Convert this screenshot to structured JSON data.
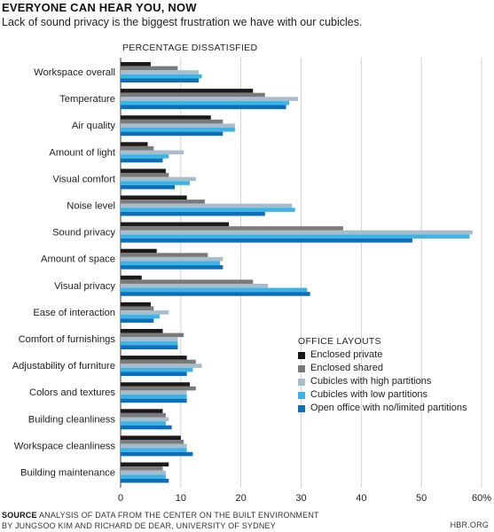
{
  "header": {
    "title": "EVERYONE CAN HEAR YOU, NOW",
    "subtitle": "Lack of sound privacy is the biggest frustration we have with our cubicles."
  },
  "footer": {
    "source_label": "SOURCE",
    "source_line1": "ANALYSIS OF DATA FROM THE CENTER ON THE BUILT ENVIRONMENT",
    "source_line2": "BY JUNGSOO KIM AND RICHARD DE DEAR, UNIVERSITY OF SYDNEY",
    "credit": "HBR.ORG"
  },
  "chart_data": {
    "type": "bar",
    "orientation": "horizontal",
    "title": "EVERYONE CAN HEAR YOU, NOW",
    "subtitle": "Lack of sound privacy is the biggest frustration we have with our cubicles.",
    "axis_title": "PERCENTAGE DISSATISFIED",
    "xlim": [
      0,
      60
    ],
    "ticks": [
      0,
      10,
      20,
      30,
      40,
      50,
      60
    ],
    "tick_labels": [
      "0",
      "10",
      "20",
      "30",
      "40",
      "50",
      "60%"
    ],
    "grid": true,
    "legend_title": "OFFICE LAYOUTS",
    "legend_position": "bottom-right",
    "categories": [
      "Workspace overall",
      "Temperature",
      "Air quality",
      "Amount of light",
      "Visual comfort",
      "Noise level",
      "Sound privacy",
      "Amount of space",
      "Visual privacy",
      "Ease of interaction",
      "Comfort of furnishings",
      "Adjustability of furniture",
      "Colors and textures",
      "Building cleanliness",
      "Workspace cleanliness",
      "Building maintenance"
    ],
    "series": [
      {
        "name": "Enclosed private",
        "color": "#1a1a1a",
        "values": [
          5,
          22,
          15,
          4.5,
          7.5,
          11,
          18,
          6,
          3.5,
          5,
          7,
          11,
          11.5,
          7,
          10,
          8
        ]
      },
      {
        "name": "Enclosed shared",
        "color": "#7a7a7a",
        "values": [
          9.5,
          24,
          17,
          5.5,
          8,
          14,
          37,
          14.5,
          22,
          5.5,
          10.5,
          12.5,
          12.5,
          7.5,
          10.5,
          7
        ]
      },
      {
        "name": "Cubicles with high partitions",
        "color": "#a9bccb",
        "values": [
          13,
          29.5,
          19,
          10.5,
          12.5,
          28.5,
          58.5,
          17,
          24.5,
          8,
          9.5,
          13.5,
          11,
          8,
          11,
          7.5
        ]
      },
      {
        "name": "Cubicles with low partitions",
        "color": "#3cb4e6",
        "values": [
          13.5,
          28,
          19,
          8,
          11.5,
          29,
          58,
          16.5,
          31,
          6.5,
          9.5,
          12,
          11,
          7.5,
          11,
          7.5
        ]
      },
      {
        "name": "Open office with no/limited partitions",
        "color": "#0b6fba",
        "values": [
          13,
          27.5,
          17,
          7,
          9,
          24,
          48.5,
          17,
          31.5,
          5.5,
          9.5,
          11,
          11,
          8.5,
          12,
          8
        ]
      }
    ]
  }
}
